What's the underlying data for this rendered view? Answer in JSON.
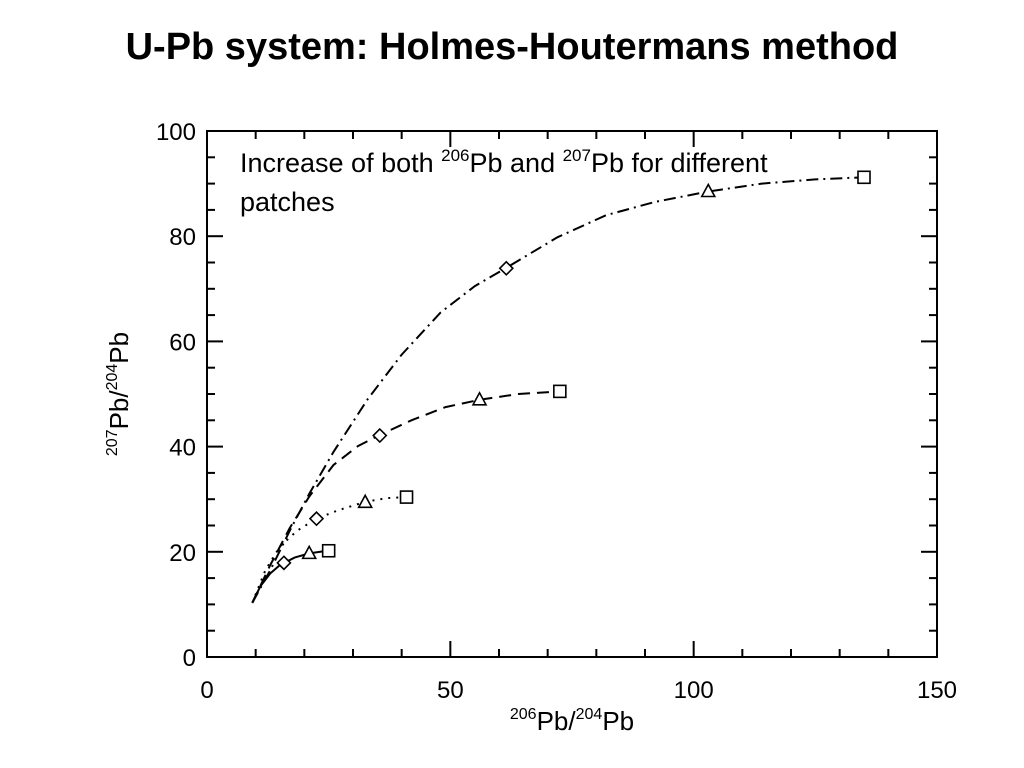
{
  "slide": {
    "title": "U-Pb system: Holmes-Houtermans method"
  },
  "chart_data": {
    "type": "line",
    "title": "",
    "annotation": {
      "line1_parts": [
        "Increase of both ",
        "206",
        "Pb and ",
        "207",
        "Pb for different"
      ],
      "line2": "patches"
    },
    "xlabel": {
      "sup1": "206",
      "base1": "Pb/",
      "sup2": "204",
      "base2": "Pb"
    },
    "ylabel": {
      "sup1": "207",
      "base1": "Pb/",
      "sup2": "204",
      "base2": "Pb"
    },
    "xlim": [
      0,
      150
    ],
    "ylim": [
      0,
      100
    ],
    "x_ticks": [
      0,
      50,
      100,
      150
    ],
    "y_ticks": [
      0,
      20,
      40,
      60,
      80,
      100
    ],
    "grid": false,
    "origin": {
      "x": 9.3,
      "y": 10.3
    },
    "series": [
      {
        "style": "solid",
        "line": [
          [
            9.3,
            10.3
          ],
          [
            11,
            13.5
          ],
          [
            13,
            15.9
          ],
          [
            15,
            17.5
          ],
          [
            18,
            18.9
          ],
          [
            21,
            19.7
          ],
          [
            24,
            20.1
          ],
          [
            25,
            20.2
          ]
        ],
        "markers": [
          {
            "shape": "diamond",
            "x": 15.8,
            "y": 17.9
          },
          {
            "shape": "triangle",
            "x": 21,
            "y": 19.7
          },
          {
            "shape": "square",
            "x": 25,
            "y": 20.2
          }
        ]
      },
      {
        "style": "dotted",
        "line": [
          [
            9.3,
            10.3
          ],
          [
            12,
            16.5
          ],
          [
            15,
            21
          ],
          [
            18.5,
            24
          ],
          [
            22.5,
            26.3
          ],
          [
            27,
            27.9
          ],
          [
            32.5,
            29.5
          ],
          [
            37,
            30.2
          ],
          [
            41,
            30.4
          ]
        ],
        "markers": [
          {
            "shape": "diamond",
            "x": 22.5,
            "y": 26.3
          },
          {
            "shape": "triangle",
            "x": 32.5,
            "y": 29.4
          },
          {
            "shape": "square",
            "x": 41,
            "y": 30.4
          }
        ]
      },
      {
        "style": "dashed",
        "line": [
          [
            9.3,
            10.3
          ],
          [
            13,
            17.5
          ],
          [
            17,
            24.5
          ],
          [
            21,
            30.5
          ],
          [
            26,
            36.5
          ],
          [
            31,
            40.1
          ],
          [
            35.5,
            42.2
          ],
          [
            42,
            45
          ],
          [
            49,
            47.5
          ],
          [
            56,
            48.9
          ],
          [
            64,
            50
          ],
          [
            72.5,
            50.5
          ]
        ],
        "markers": [
          {
            "shape": "diamond",
            "x": 35.5,
            "y": 42.1
          },
          {
            "shape": "triangle",
            "x": 56,
            "y": 48.9
          },
          {
            "shape": "square",
            "x": 72.5,
            "y": 50.5
          }
        ]
      },
      {
        "style": "dashdot",
        "line": [
          [
            9.3,
            10.3
          ],
          [
            13,
            16.5
          ],
          [
            17,
            24
          ],
          [
            21,
            31
          ],
          [
            26,
            39
          ],
          [
            33,
            49
          ],
          [
            40,
            57.5
          ],
          [
            48,
            65.5
          ],
          [
            55,
            70.5
          ],
          [
            61.5,
            74
          ],
          [
            72,
            79.8
          ],
          [
            82,
            84
          ],
          [
            92,
            86.5
          ],
          [
            103,
            88.5
          ],
          [
            114,
            90
          ],
          [
            125,
            90.8
          ],
          [
            135,
            91.2
          ]
        ],
        "markers": [
          {
            "shape": "diamond",
            "x": 61.5,
            "y": 73.9
          },
          {
            "shape": "triangle",
            "x": 103,
            "y": 88.5
          },
          {
            "shape": "square",
            "x": 135,
            "y": 91.2
          }
        ]
      }
    ]
  }
}
